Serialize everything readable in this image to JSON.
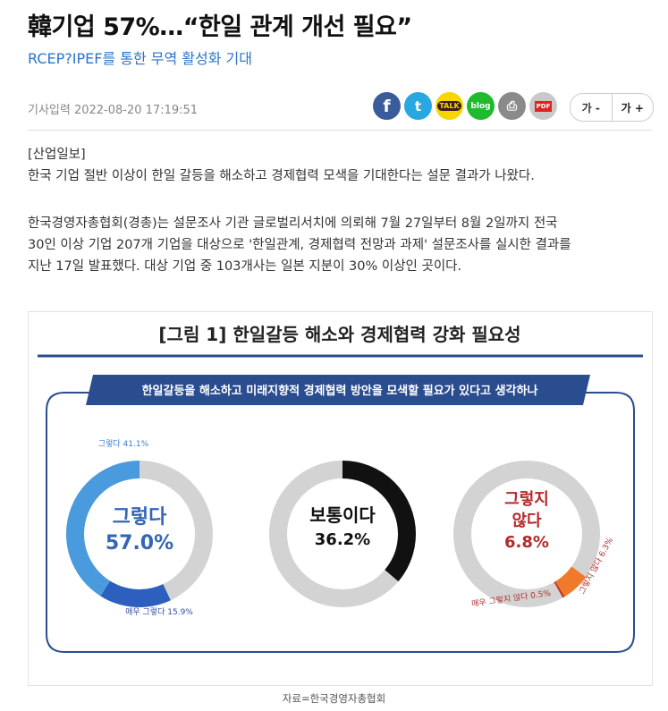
{
  "article": {
    "headline": "韓기업 57%…“한일 관계 개선 필요”",
    "subhead": "RCEP?IPEF를 통한 무역 활성화 기대",
    "meta": "기사입력 2022-08-20 17:19:51",
    "source": "[산업일보]",
    "para1": "한국 기업 절반 이상이 한일 갈등을 해소하고 경제협력 모색을 기대한다는 설문 결과가 나왔다.",
    "para2_line1": "한국경영자총협회(경총)는 설문조사 기관 글로벌리서치에 의뢰해 7월 27일부터 8월 2일까지 전국",
    "para2_line2": "30인 이상 기업 207개 기업을 대상으로 '한일관계, 경제협력 전망과 과제' 설문조사를 실시한 결과를",
    "para2_line3": "지난 17일 발표했다. 대상 기업 중 103개사는 일본 지분이 30% 이상인 곳이다.",
    "caption": "자료=한국경영자총협회"
  },
  "share": {
    "facebook": "f",
    "twitter": "t",
    "kakao": "TALK",
    "blog": "blog",
    "print": "⎙",
    "pdf": "PDF"
  },
  "font_controls": {
    "decrease": "가 -",
    "increase": "가 +"
  },
  "figure": {
    "title": "[그림 1] 한일갈등 해소와 경제협력 강화 필요성",
    "question": "한일갈등을 해소하고 미래지향적 경제협력 방안을 모색할 필요가 있다고 생각하나",
    "donut1": {
      "label1": "그렇다",
      "label2": "57.0%",
      "outer_label": "그렇다 41.1%",
      "inner_label": "매우 그렇다 15.9%"
    },
    "donut2": {
      "label1": "보통이다",
      "label2": "36.2%"
    },
    "donut3": {
      "label1": "그렇지",
      "label2": "않다",
      "label3": "6.8%",
      "outer_label1": "매우 그렇지 않다 0.5%",
      "outer_label2": "그렇지 않다 6.3%"
    }
  },
  "chart_data": {
    "type": "pie",
    "title": "[그림 1] 한일갈등 해소와 경제협력 강화 필요성",
    "subtitle": "한일갈등을 해소하고 미래지향적 경제협력 방안을 모색할 필요가 있다고 생각하나",
    "donuts": [
      {
        "label": "그렇다",
        "total": 57.0,
        "slices": [
          {
            "name": "그렇다",
            "value": 41.1
          },
          {
            "name": "매우 그렇다",
            "value": 15.9
          }
        ]
      },
      {
        "label": "보통이다",
        "total": 36.2,
        "slices": [
          {
            "name": "보통이다",
            "value": 36.2
          }
        ]
      },
      {
        "label": "그렇지 않다",
        "total": 6.8,
        "slices": [
          {
            "name": "그렇지 않다",
            "value": 6.3
          },
          {
            "name": "매우 그렇지 않다",
            "value": 0.5
          }
        ]
      }
    ],
    "colors": {
      "yes": "#4a9ade",
      "very_yes": "#2d5fbf",
      "neutral": "#111111",
      "no": "#f07a2a",
      "very_no": "#c0392b",
      "rest": "#d3d3d3"
    }
  }
}
